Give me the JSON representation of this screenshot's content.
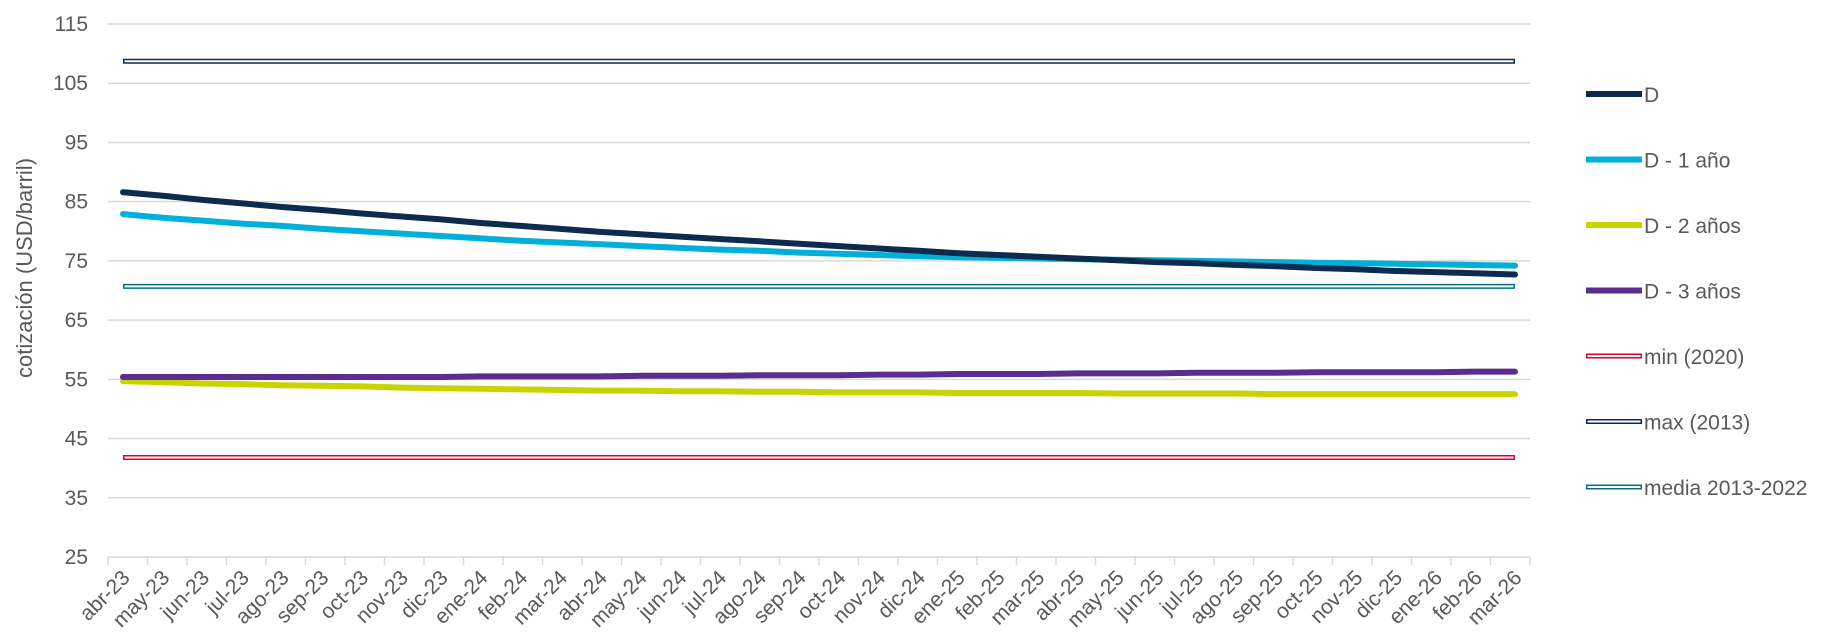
{
  "chart_data": {
    "type": "line",
    "title": "",
    "xlabel": "",
    "ylabel": "cotización (USD/barril)",
    "ylim": [
      25,
      115
    ],
    "yticks": [
      25,
      35,
      45,
      55,
      65,
      75,
      85,
      95,
      105,
      115
    ],
    "grid": "horizontal",
    "legend_position": "right",
    "categories": [
      "abr-23",
      "may-23",
      "jun-23",
      "jul-23",
      "ago-23",
      "sep-23",
      "oct-23",
      "nov-23",
      "dic-23",
      "ene-24",
      "feb-24",
      "mar-24",
      "abr-24",
      "may-24",
      "jun-24",
      "jul-24",
      "ago-24",
      "sep-24",
      "oct-24",
      "nov-24",
      "dic-24",
      "ene-25",
      "feb-25",
      "mar-25",
      "abr-25",
      "may-25",
      "jun-25",
      "jul-25",
      "ago-25",
      "sep-25",
      "oct-25",
      "nov-25",
      "dic-25",
      "ene-26",
      "feb-26",
      "mar-26"
    ],
    "series": [
      {
        "name": "D",
        "style": "solid",
        "color": "#0d2b4e",
        "values": [
          86.6,
          86.0,
          85.3,
          84.7,
          84.1,
          83.6,
          83.0,
          82.5,
          82.0,
          81.4,
          80.9,
          80.4,
          79.9,
          79.5,
          79.1,
          78.7,
          78.3,
          77.9,
          77.5,
          77.1,
          76.7,
          76.3,
          76.0,
          75.7,
          75.4,
          75.1,
          74.8,
          74.6,
          74.3,
          74.1,
          73.8,
          73.6,
          73.3,
          73.1,
          72.9,
          72.7
        ]
      },
      {
        "name": "D - 1 año",
        "style": "solid",
        "color": "#00b0d8",
        "values": [
          82.9,
          82.3,
          81.8,
          81.3,
          80.9,
          80.4,
          80.0,
          79.6,
          79.2,
          78.8,
          78.4,
          78.1,
          77.8,
          77.5,
          77.2,
          76.9,
          76.7,
          76.4,
          76.2,
          76.0,
          75.8,
          75.6,
          75.5,
          75.4,
          75.3,
          75.2,
          75.1,
          75.0,
          74.9,
          74.8,
          74.7,
          74.6,
          74.5,
          74.4,
          74.3,
          74.2
        ]
      },
      {
        "name": "D - 2 años",
        "style": "solid",
        "color": "#c8d400",
        "values": [
          54.7,
          54.5,
          54.3,
          54.2,
          54.0,
          53.9,
          53.8,
          53.6,
          53.5,
          53.4,
          53.3,
          53.2,
          53.1,
          53.1,
          53.0,
          53.0,
          52.9,
          52.9,
          52.8,
          52.8,
          52.8,
          52.7,
          52.7,
          52.7,
          52.7,
          52.6,
          52.6,
          52.6,
          52.6,
          52.5,
          52.5,
          52.5,
          52.5,
          52.5,
          52.5,
          52.5
        ]
      },
      {
        "name": "D - 3 años",
        "style": "solid",
        "color": "#5b2d8e",
        "values": [
          55.4,
          55.4,
          55.4,
          55.4,
          55.4,
          55.4,
          55.4,
          55.4,
          55.4,
          55.5,
          55.5,
          55.5,
          55.5,
          55.6,
          55.6,
          55.6,
          55.7,
          55.7,
          55.7,
          55.8,
          55.8,
          55.9,
          55.9,
          55.9,
          56.0,
          56.0,
          56.0,
          56.1,
          56.1,
          56.1,
          56.2,
          56.2,
          56.2,
          56.2,
          56.3,
          56.3
        ]
      },
      {
        "name": "min (2020)",
        "style": "double",
        "color": "#e4002b",
        "constant": 41.8
      },
      {
        "name": "max (2013)",
        "style": "double",
        "color": "#0d2b4e",
        "constant": 108.7
      },
      {
        "name": "media 2013-2022",
        "style": "double",
        "color": "#006f8a",
        "constant": 70.7
      }
    ]
  }
}
